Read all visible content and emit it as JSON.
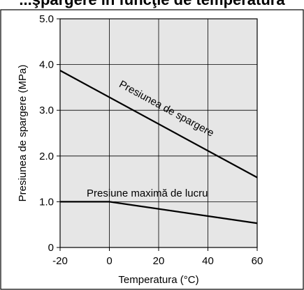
{
  "chart_data": {
    "type": "line",
    "title": "...şpargere în funcţie de temperatură",
    "xlabel": "Temperatura (°C)",
    "ylabel": "Presiunea de spargere (MPa)",
    "xlim": [
      -20,
      60
    ],
    "ylim": [
      0,
      5.0
    ],
    "x_ticks": [
      -20,
      0,
      20,
      40,
      60
    ],
    "x_tick_labels": [
      "-20",
      "0",
      "20",
      "40",
      "60"
    ],
    "y_ticks": [
      0,
      1.0,
      2.0,
      3.0,
      4.0,
      5.0
    ],
    "y_tick_labels": [
      "0",
      "1.0",
      "2.0",
      "3.0",
      "4.0",
      "5.0"
    ],
    "grid": true,
    "plot_background": "#e6e6e6",
    "series": [
      {
        "name": "Presiunea de spargere",
        "color": "#000000",
        "points": [
          [
            -20,
            3.87
          ],
          [
            60,
            1.53
          ]
        ]
      },
      {
        "name": "Presiune maximă de lucru",
        "color": "#000000",
        "points": [
          [
            -20,
            1.0
          ],
          [
            0,
            1.0
          ],
          [
            60,
            0.53
          ]
        ]
      }
    ]
  }
}
